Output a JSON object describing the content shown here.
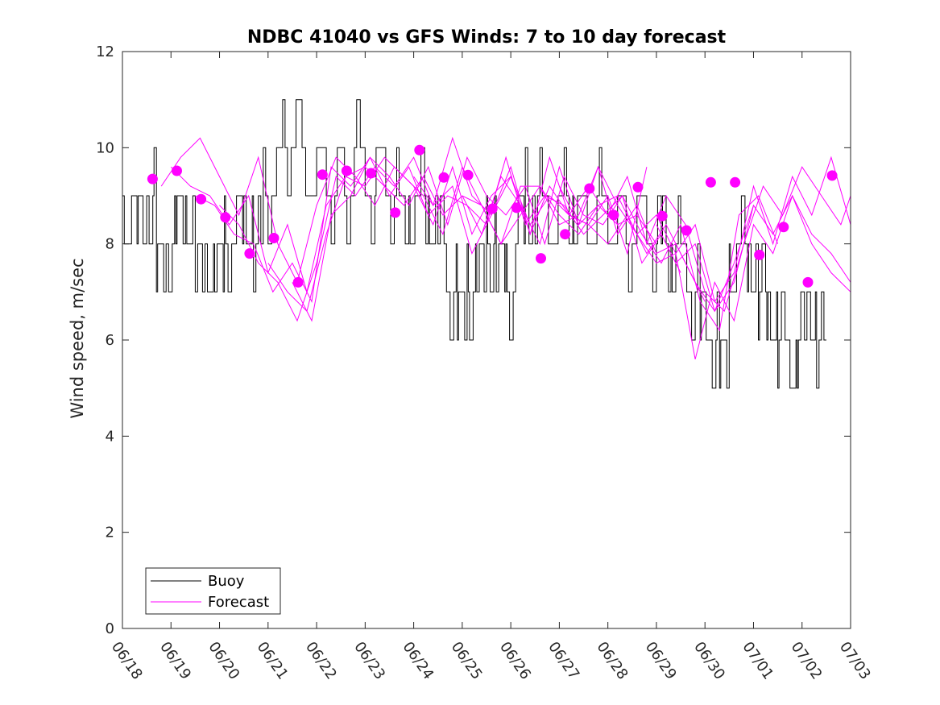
{
  "chart_data": {
    "type": "line",
    "title": "NDBC 41040 vs GFS Winds: 7 to 10 day forecast",
    "xlabel": "",
    "ylabel": "Wind speed, m/sec",
    "xlim": [
      "06/18",
      "07/03"
    ],
    "ylim": [
      0,
      12
    ],
    "x_tick_labels": [
      "06/18",
      "06/19",
      "06/20",
      "06/21",
      "06/22",
      "06/23",
      "06/24",
      "06/25",
      "06/26",
      "06/27",
      "06/28",
      "06/29",
      "06/30",
      "07/01",
      "07/02",
      "07/03"
    ],
    "y_tick_labels": [
      "0",
      "2",
      "4",
      "6",
      "8",
      "10",
      "12"
    ],
    "grid": false,
    "legend_position": "bottom-left",
    "legend": [
      "Buoy",
      "Forecast"
    ],
    "colors": {
      "buoy": "#000000",
      "forecast": "#ff00ff"
    },
    "series": [
      {
        "name": "Buoy",
        "style": "line",
        "x_days": [
          0.0,
          0.3,
          0.5,
          0.7,
          0.9,
          1.1,
          1.3,
          1.5,
          1.7,
          1.9,
          2.1,
          2.3,
          2.5,
          2.7,
          2.9,
          3.1,
          3.3,
          3.5,
          3.7,
          3.9,
          4.1,
          4.3,
          4.5,
          4.7,
          4.9,
          5.1,
          5.3,
          5.5,
          5.7,
          5.9,
          6.1,
          6.3,
          6.5,
          6.7,
          6.9,
          7.1,
          7.3,
          7.5,
          7.7,
          7.9,
          8.1,
          8.3,
          8.5,
          8.7,
          8.9,
          9.1,
          9.3,
          9.5,
          9.7,
          9.9,
          10.1,
          10.3,
          10.5,
          10.7,
          10.9,
          11.1,
          11.3,
          11.5,
          11.7,
          11.9,
          12.1,
          12.3,
          12.5,
          12.7,
          12.9,
          13.1,
          13.3,
          13.5,
          13.7,
          13.9,
          14.1,
          14.3
        ],
        "y": [
          8.5,
          8.5,
          9.0,
          7.5,
          8.0,
          8.5,
          8.5,
          7.5,
          7.5,
          7.5,
          8.0,
          8.5,
          8.5,
          8.0,
          9.0,
          9.5,
          10.0,
          10.5,
          9.5,
          9.5,
          9.5,
          9.0,
          9.0,
          10.0,
          9.5,
          9.0,
          9.5,
          9.0,
          8.5,
          8.5,
          9.0,
          8.5,
          8.0,
          7.0,
          6.5,
          7.0,
          7.5,
          8.0,
          7.5,
          7.0,
          8.5,
          9.0,
          9.0,
          8.5,
          8.5,
          9.0,
          8.5,
          8.5,
          9.0,
          8.5,
          8.5,
          8.0,
          8.5,
          8.5,
          8.0,
          8.0,
          8.0,
          7.5,
          7.0,
          6.5,
          6.0,
          5.5,
          7.5,
          8.0,
          7.5,
          7.0,
          6.5,
          6.0,
          5.5,
          6.0,
          6.5,
          6.0
        ]
      },
      {
        "name": "Forecast",
        "style": "line",
        "lines": [
          {
            "x_days": [
              0.8,
              1.2,
              1.6,
              2.0,
              2.4,
              2.8,
              3.2,
              3.6,
              4.0,
              4.4,
              4.8,
              5.2,
              5.6,
              6.0,
              6.4,
              6.8,
              7.2,
              7.6,
              8.0,
              8.4,
              8.8,
              9.2,
              9.6,
              10.0,
              10.4,
              10.8
            ],
            "y": [
              9.2,
              9.8,
              10.2,
              9.4,
              8.6,
              9.8,
              8.0,
              7.2,
              8.8,
              9.8,
              9.4,
              8.8,
              9.6,
              9.2,
              8.4,
              9.6,
              8.2,
              9.0,
              9.4,
              8.4,
              9.0,
              8.6,
              8.4,
              9.0,
              7.8,
              9.6
            ]
          },
          {
            "x_days": [
              1.0,
              1.4,
              1.8,
              2.2,
              2.6,
              3.0,
              3.4,
              3.8,
              4.2,
              4.6,
              5.0,
              5.4,
              5.8,
              6.2,
              6.6,
              7.0,
              7.4,
              7.8,
              8.2,
              8.6,
              9.0,
              9.4,
              9.8,
              10.2,
              10.6,
              11.0
            ],
            "y": [
              9.6,
              9.2,
              9.0,
              8.4,
              9.0,
              7.4,
              8.4,
              7.0,
              8.8,
              9.4,
              9.6,
              9.2,
              8.8,
              9.4,
              8.6,
              9.0,
              8.8,
              8.0,
              9.2,
              9.2,
              8.6,
              8.2,
              8.8,
              8.4,
              8.6,
              8.0
            ]
          },
          {
            "x_days": [
              1.5,
              1.9,
              2.3,
              2.7,
              3.1,
              3.5,
              3.9,
              4.3,
              4.7,
              5.1,
              5.5,
              5.9,
              6.3,
              6.7,
              7.1,
              7.5,
              7.9,
              8.3,
              8.7,
              9.1,
              9.5,
              9.9,
              10.3,
              10.7,
              11.1,
              11.5
            ],
            "y": [
              9.0,
              8.8,
              8.2,
              8.0,
              7.0,
              7.6,
              6.8,
              9.6,
              9.2,
              9.8,
              9.0,
              9.6,
              8.6,
              9.0,
              8.8,
              8.4,
              9.8,
              8.4,
              9.0,
              8.8,
              8.2,
              8.6,
              9.0,
              7.6,
              8.2,
              7.4
            ]
          },
          {
            "x_days": [
              2.0,
              2.4,
              2.8,
              3.2,
              3.6,
              4.0,
              4.4,
              4.8,
              5.2,
              5.6,
              6.0,
              6.4,
              6.8,
              7.2,
              7.6,
              8.0,
              8.4,
              8.8,
              9.2,
              9.6,
              10.0,
              10.4,
              10.8,
              11.2,
              11.6,
              12.0
            ],
            "y": [
              8.8,
              8.4,
              7.6,
              7.2,
              6.4,
              7.6,
              9.4,
              9.0,
              9.6,
              9.2,
              9.8,
              8.8,
              9.2,
              7.8,
              8.6,
              9.4,
              8.2,
              9.2,
              8.6,
              8.4,
              8.0,
              8.6,
              7.8,
              8.4,
              7.6,
              6.8
            ]
          },
          {
            "x_days": [
              3.0,
              3.4,
              3.8,
              4.2,
              4.6,
              5.0,
              5.4,
              5.8,
              6.2,
              6.6,
              7.0,
              7.4,
              7.8,
              8.2,
              8.6,
              9.0,
              9.4,
              9.8,
              10.2,
              10.6,
              11.0,
              11.4,
              11.8,
              12.2,
              12.6,
              13.0
            ],
            "y": [
              7.6,
              7.0,
              6.6,
              8.2,
              9.4,
              9.2,
              9.8,
              9.4,
              9.0,
              8.2,
              9.6,
              8.8,
              8.0,
              8.6,
              9.2,
              8.4,
              8.6,
              9.6,
              8.2,
              8.8,
              7.8,
              8.0,
              7.2,
              6.6,
              7.6,
              8.8
            ]
          },
          {
            "x_days": [
              3.5,
              3.9,
              4.3,
              4.7,
              5.1,
              5.5,
              5.9,
              6.3,
              6.7,
              7.1,
              7.5,
              7.9,
              8.3,
              8.7,
              9.1,
              9.5,
              9.9,
              10.3,
              10.7,
              11.1,
              11.5,
              11.9,
              12.3,
              12.7,
              13.1,
              13.5
            ],
            "y": [
              7.2,
              6.4,
              8.6,
              9.0,
              9.8,
              9.4,
              8.8,
              9.6,
              8.4,
              9.8,
              9.0,
              8.6,
              9.2,
              8.0,
              9.4,
              8.6,
              8.4,
              9.0,
              8.2,
              7.6,
              8.4,
              6.8,
              6.2,
              8.6,
              9.0,
              8.0
            ]
          },
          {
            "x_days": [
              6.0,
              6.4,
              6.8,
              7.2,
              7.6,
              8.0,
              8.4,
              8.8,
              9.2,
              9.6,
              10.0,
              10.4,
              10.8,
              11.2,
              11.6,
              12.0,
              12.4,
              12.8,
              13.2,
              13.6,
              14.0,
              14.4,
              14.8,
              15.0
            ],
            "y": [
              9.4,
              8.8,
              10.2,
              9.0,
              8.6,
              9.6,
              8.2,
              9.8,
              8.6,
              9.2,
              8.6,
              9.4,
              8.0,
              9.0,
              8.4,
              7.0,
              6.6,
              8.0,
              9.2,
              8.6,
              9.6,
              9.0,
              8.4,
              9.0
            ]
          },
          {
            "x_days": [
              7.0,
              7.4,
              7.8,
              8.2,
              8.6,
              9.0,
              9.4,
              9.8,
              10.2,
              10.6,
              11.0,
              11.4,
              11.8,
              12.2,
              12.6,
              13.0,
              13.4,
              13.8,
              14.2,
              14.6,
              15.0
            ],
            "y": [
              9.0,
              8.2,
              9.4,
              8.8,
              8.0,
              9.6,
              8.4,
              8.8,
              9.0,
              8.2,
              7.6,
              7.8,
              5.6,
              7.2,
              6.4,
              8.4,
              7.8,
              9.0,
              8.2,
              7.8,
              7.2
            ]
          },
          {
            "x_days": [
              9.0,
              9.4,
              9.8,
              10.2,
              10.6,
              11.0,
              11.4,
              11.8,
              12.2,
              12.6,
              13.0,
              13.4,
              13.8,
              14.2,
              14.6,
              15.0
            ],
            "y": [
              9.2,
              8.4,
              9.6,
              8.8,
              8.2,
              8.6,
              7.8,
              8.4,
              6.8,
              7.4,
              9.2,
              8.0,
              9.4,
              8.6,
              9.8,
              8.4
            ]
          },
          {
            "x_days": [
              11.0,
              11.4,
              11.8,
              12.2,
              12.6,
              13.0,
              13.4,
              13.8,
              14.2,
              14.6,
              15.0
            ],
            "y": [
              8.4,
              7.6,
              8.0,
              6.6,
              7.2,
              8.8,
              8.2,
              9.0,
              8.0,
              7.4,
              7.0
            ]
          }
        ]
      },
      {
        "name": "",
        "style": "markers",
        "x_days": [
          0.62,
          1.12,
          1.62,
          2.12,
          2.62,
          3.12,
          3.62,
          4.12,
          4.62,
          5.12,
          5.62,
          6.12,
          6.62,
          7.12,
          7.62,
          8.12,
          8.62,
          9.12,
          9.62,
          10.12,
          10.62,
          11.12,
          11.62,
          12.12,
          12.62,
          13.12,
          13.62,
          14.12,
          14.62
        ],
        "y": [
          9.35,
          9.52,
          8.93,
          8.55,
          7.8,
          8.12,
          7.2,
          9.44,
          9.52,
          9.47,
          8.65,
          9.95,
          9.38,
          9.43,
          8.73,
          8.75,
          7.7,
          8.2,
          9.15,
          8.6,
          9.18,
          8.58,
          8.28,
          9.28,
          9.28,
          7.77,
          8.35,
          7.2,
          9.42
        ]
      }
    ]
  }
}
